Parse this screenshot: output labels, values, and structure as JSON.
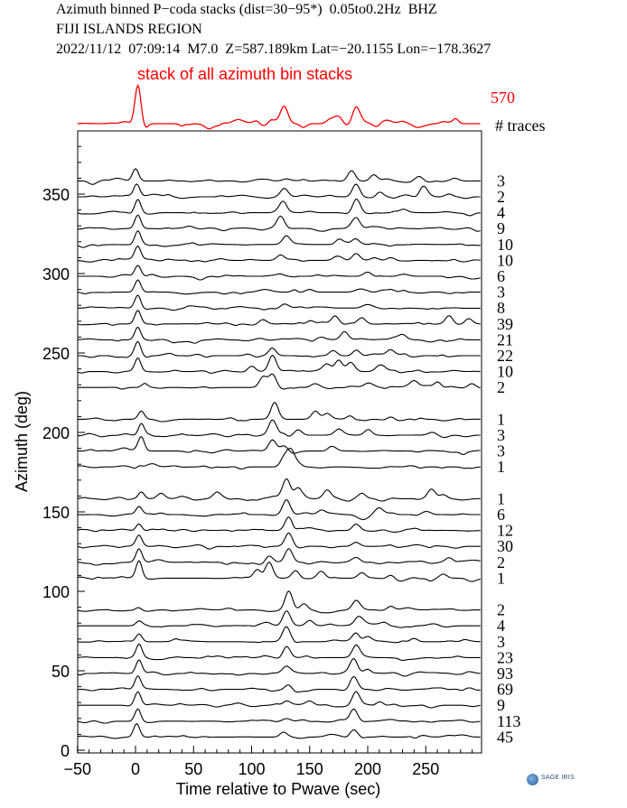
{
  "header": {
    "line1": "Azimuth binned P−coda stacks (dist=30−95*)  0.05to0.2Hz  BHZ",
    "line2": "FIJI ISLANDS REGION",
    "line3": "2022/11/12  07:09:14  M7.0  Z=587.189km Lat=−20.1155 Lon=−178.3627"
  },
  "logo": {
    "text": "SAGE IRIS"
  },
  "chart_data": {
    "type": "line",
    "xlabel": "Time relative to Pwave (sec)",
    "ylabel": "Azimuth (deg)",
    "xlim": [
      -50,
      297
    ],
    "ylim": [
      0,
      390
    ],
    "xticks": [
      -50,
      0,
      50,
      100,
      150,
      200,
      250
    ],
    "xtick_labels": [
      "−50",
      "0",
      "50",
      "100",
      "150",
      "200",
      "250"
    ],
    "yticks": [
      0,
      50,
      100,
      150,
      200,
      250,
      300,
      350
    ],
    "stack_label": "stack of all azimuth bin stacks",
    "stack_count": "570",
    "count_header": "# traces",
    "colors": {
      "stack": "#ff0000",
      "traces": "#000000"
    },
    "stack_peaks": [
      [
        2,
        1.0
      ],
      [
        118,
        0.2
      ],
      [
        128,
        0.45
      ],
      [
        168,
        0.12
      ],
      [
        175,
        0.18
      ],
      [
        190,
        0.4
      ],
      [
        230,
        0.06
      ],
      [
        265,
        0.05
      ]
    ],
    "traces": [
      {
        "azimuth": 360,
        "count": "3",
        "peaks": [
          [
            0,
            0.9
          ],
          [
            130,
            0.2
          ],
          [
            186,
            0.8
          ],
          [
            205,
            0.5
          ],
          [
            245,
            0.3
          ],
          [
            275,
            0.2
          ]
        ]
      },
      {
        "azimuth": 350,
        "count": "2",
        "peaks": [
          [
            1,
            1.0
          ],
          [
            128,
            0.6
          ],
          [
            190,
            1.0
          ],
          [
            210,
            0.4
          ],
          [
            248,
            0.7
          ],
          [
            270,
            0.2
          ]
        ]
      },
      {
        "azimuth": 340,
        "count": "4",
        "peaks": [
          [
            2,
            1.0
          ],
          [
            127,
            0.8
          ],
          [
            190,
            1.0
          ],
          [
            230,
            0.2
          ]
        ]
      },
      {
        "azimuth": 330,
        "count": "9",
        "peaks": [
          [
            2,
            1.0
          ],
          [
            125,
            0.9
          ],
          [
            190,
            0.8
          ]
        ]
      },
      {
        "azimuth": 320,
        "count": "10",
        "peaks": [
          [
            2,
            1.0
          ],
          [
            130,
            0.6
          ],
          [
            175,
            0.4
          ],
          [
            190,
            0.5
          ]
        ]
      },
      {
        "azimuth": 310,
        "count": "10",
        "peaks": [
          [
            2,
            1.0
          ],
          [
            125,
            0.4
          ],
          [
            175,
            0.3
          ],
          [
            190,
            0.5
          ],
          [
            220,
            0.2
          ]
        ]
      },
      {
        "azimuth": 300,
        "count": "6",
        "peaks": [
          [
            2,
            0.8
          ],
          [
            200,
            0.3
          ]
        ]
      },
      {
        "azimuth": 290,
        "count": "3",
        "peaks": [
          [
            2,
            0.9
          ],
          [
            150,
            0.2
          ],
          [
            220,
            0.2
          ]
        ]
      },
      {
        "azimuth": 280,
        "count": "8",
        "peaks": [
          [
            2,
            1.0
          ],
          [
            130,
            0.2
          ],
          [
            200,
            0.2
          ]
        ]
      },
      {
        "azimuth": 270,
        "count": "39",
        "peaks": [
          [
            2,
            1.0
          ],
          [
            110,
            0.3
          ],
          [
            150,
            0.3
          ],
          [
            172,
            0.6
          ],
          [
            195,
            0.4
          ],
          [
            270,
            0.5
          ],
          [
            287,
            0.4
          ]
        ]
      },
      {
        "azimuth": 260,
        "count": "21",
        "peaks": [
          [
            2,
            1.0
          ],
          [
            160,
            0.2
          ],
          [
            180,
            0.6
          ],
          [
            230,
            0.3
          ]
        ]
      },
      {
        "azimuth": 250,
        "count": "22",
        "peaks": [
          [
            2,
            1.0
          ],
          [
            118,
            0.6
          ],
          [
            170,
            0.4
          ],
          [
            190,
            0.5
          ],
          [
            220,
            0.3
          ]
        ]
      },
      {
        "azimuth": 240,
        "count": "10",
        "peaks": [
          [
            2,
            1.0
          ],
          [
            100,
            0.4
          ],
          [
            118,
            1.2
          ],
          [
            165,
            0.5
          ],
          [
            175,
            0.8
          ],
          [
            185,
            0.6
          ],
          [
            210,
            0.4
          ]
        ]
      },
      {
        "azimuth": 230,
        "count": "2",
        "peaks": [
          [
            8,
            0.3
          ],
          [
            110,
            0.8
          ],
          [
            118,
            1.0
          ],
          [
            155,
            0.4
          ],
          [
            200,
            0.3
          ],
          [
            240,
            0.4
          ],
          [
            260,
            0.5
          ],
          [
            290,
            0.3
          ]
        ]
      },
      {
        "azimuth": 210,
        "count": "1",
        "peaks": [
          [
            5,
            0.6
          ],
          [
            120,
            1.1
          ],
          [
            155,
            0.6
          ],
          [
            165,
            0.4
          ],
          [
            185,
            0.4
          ],
          [
            220,
            0.3
          ]
        ]
      },
      {
        "azimuth": 200,
        "count": "3",
        "peaks": [
          [
            5,
            0.9
          ],
          [
            118,
            1.0
          ],
          [
            140,
            0.4
          ],
          [
            175,
            0.3
          ],
          [
            200,
            0.3
          ]
        ]
      },
      {
        "azimuth": 190,
        "count": "3",
        "peaks": [
          [
            5,
            1.0
          ],
          [
            118,
            0.8
          ],
          [
            128,
            0.4
          ],
          [
            170,
            0.3
          ]
        ]
      },
      {
        "azimuth": 180,
        "count": "1",
        "peaks": [
          [
            3,
            0.2
          ],
          [
            128,
            0.8
          ],
          [
            134,
            1.2
          ],
          [
            140,
            0.3
          ]
        ]
      },
      {
        "azimuth": 160,
        "count": "1",
        "peaks": [
          [
            5,
            0.5
          ],
          [
            22,
            0.4
          ],
          [
            70,
            0.4
          ],
          [
            130,
            1.5
          ],
          [
            140,
            0.8
          ],
          [
            165,
            0.6
          ],
          [
            195,
            0.4
          ],
          [
            255,
            0.7
          ],
          [
            265,
            0.3
          ]
        ]
      },
      {
        "azimuth": 150,
        "count": "6",
        "peaks": [
          [
            3,
            0.6
          ],
          [
            130,
            1.1
          ],
          [
            160,
            0.3
          ],
          [
            210,
            0.3
          ]
        ]
      },
      {
        "azimuth": 140,
        "count": "12",
        "peaks": [
          [
            3,
            0.6
          ],
          [
            132,
            1.0
          ],
          [
            190,
            0.5
          ]
        ]
      },
      {
        "azimuth": 130,
        "count": "30",
        "peaks": [
          [
            3,
            0.8
          ],
          [
            132,
            1.0
          ],
          [
            190,
            0.3
          ],
          [
            220,
            0.2
          ]
        ]
      },
      {
        "azimuth": 120,
        "count": "2",
        "peaks": [
          [
            3,
            1.0
          ],
          [
            115,
            0.5
          ],
          [
            132,
            1.0
          ],
          [
            190,
            0.3
          ],
          [
            270,
            0.3
          ]
        ]
      },
      {
        "azimuth": 110,
        "count": "1",
        "peaks": [
          [
            3,
            1.3
          ],
          [
            105,
            0.7
          ],
          [
            115,
            1.1
          ],
          [
            138,
            0.6
          ],
          [
            160,
            0.5
          ],
          [
            195,
            0.4
          ],
          [
            220,
            0.3
          ],
          [
            265,
            0.3
          ]
        ]
      },
      {
        "azimuth": 90,
        "count": "2",
        "peaks": [
          [
            3,
            0.2
          ],
          [
            132,
            1.4
          ],
          [
            145,
            0.5
          ],
          [
            190,
            0.6
          ],
          [
            220,
            0.3
          ]
        ]
      },
      {
        "azimuth": 80,
        "count": "4",
        "peaks": [
          [
            3,
            0.3
          ],
          [
            130,
            1.0
          ],
          [
            150,
            0.4
          ],
          [
            192,
            0.6
          ],
          [
            215,
            0.3
          ]
        ]
      },
      {
        "azimuth": 70,
        "count": "3",
        "peaks": [
          [
            3,
            0.6
          ],
          [
            130,
            1.0
          ],
          [
            190,
            0.7
          ],
          [
            200,
            0.5
          ],
          [
            240,
            0.3
          ]
        ]
      },
      {
        "azimuth": 60,
        "count": "23",
        "peaks": [
          [
            3,
            1.0
          ],
          [
            130,
            0.9
          ],
          [
            190,
            0.9
          ]
        ]
      },
      {
        "azimuth": 50,
        "count": "93",
        "peaks": [
          [
            3,
            1.0
          ],
          [
            130,
            0.4
          ],
          [
            188,
            1.1
          ],
          [
            200,
            0.3
          ]
        ]
      },
      {
        "azimuth": 40,
        "count": "69",
        "peaks": [
          [
            2,
            1.0
          ],
          [
            132,
            0.5
          ],
          [
            188,
            1.0
          ]
        ]
      },
      {
        "azimuth": 30,
        "count": "9",
        "peaks": [
          [
            2,
            1.0
          ],
          [
            130,
            0.4
          ],
          [
            150,
            0.3
          ],
          [
            190,
            1.0
          ],
          [
            210,
            0.3
          ]
        ]
      },
      {
        "azimuth": 20,
        "count": "113",
        "peaks": [
          [
            2,
            1.0
          ],
          [
            130,
            0.2
          ],
          [
            188,
            0.9
          ]
        ]
      },
      {
        "azimuth": 10,
        "count": "45",
        "peaks": [
          [
            1,
            1.0
          ],
          [
            128,
            0.3
          ],
          [
            188,
            0.6
          ]
        ]
      }
    ]
  }
}
